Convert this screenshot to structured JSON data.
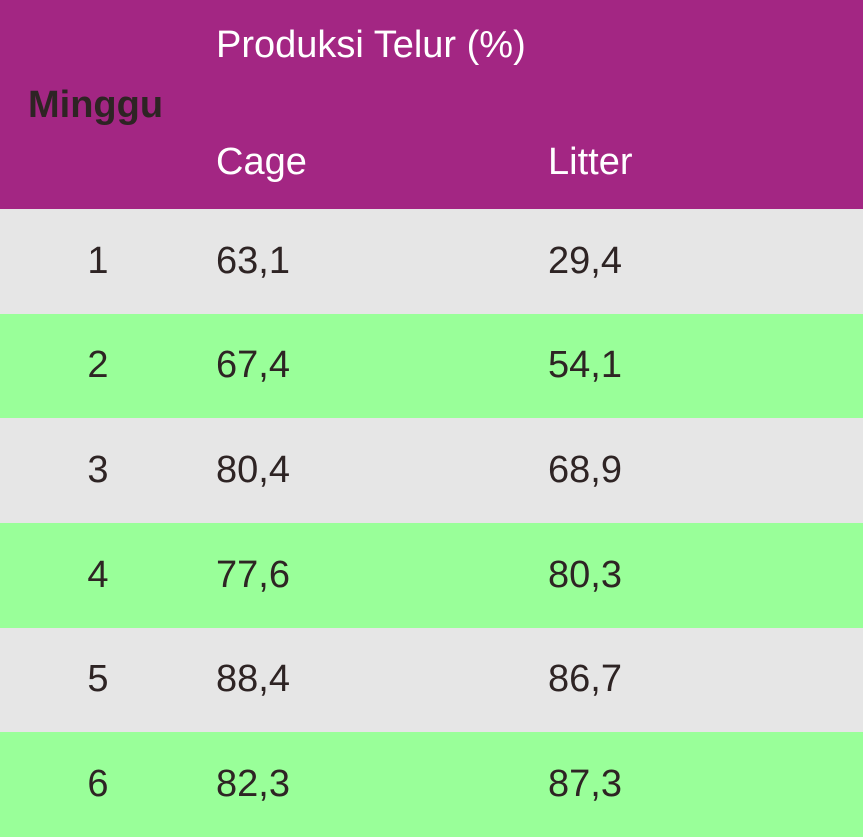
{
  "header": {
    "week_label": "Minggu",
    "group_label": "Produksi Telur (%)",
    "col_cage": "Cage",
    "col_litter": "Litter"
  },
  "rows": [
    {
      "week": "1",
      "cage": "63,1",
      "litter": "29,4"
    },
    {
      "week": "2",
      "cage": "67,4",
      "litter": "54,1"
    },
    {
      "week": "3",
      "cage": "80,4",
      "litter": "68,9"
    },
    {
      "week": "4",
      "cage": "77,6",
      "litter": "80,3"
    },
    {
      "week": "5",
      "cage": "88,4",
      "litter": "86,7"
    },
    {
      "week": "6",
      "cage": "82,3",
      "litter": "87,3"
    }
  ],
  "colors": {
    "header_bg": "#a32683",
    "row_odd_bg": "#e6e6e6",
    "row_even_bg": "#99ff99",
    "text_dark": "#2e2424",
    "text_light": "#ffffff"
  }
}
